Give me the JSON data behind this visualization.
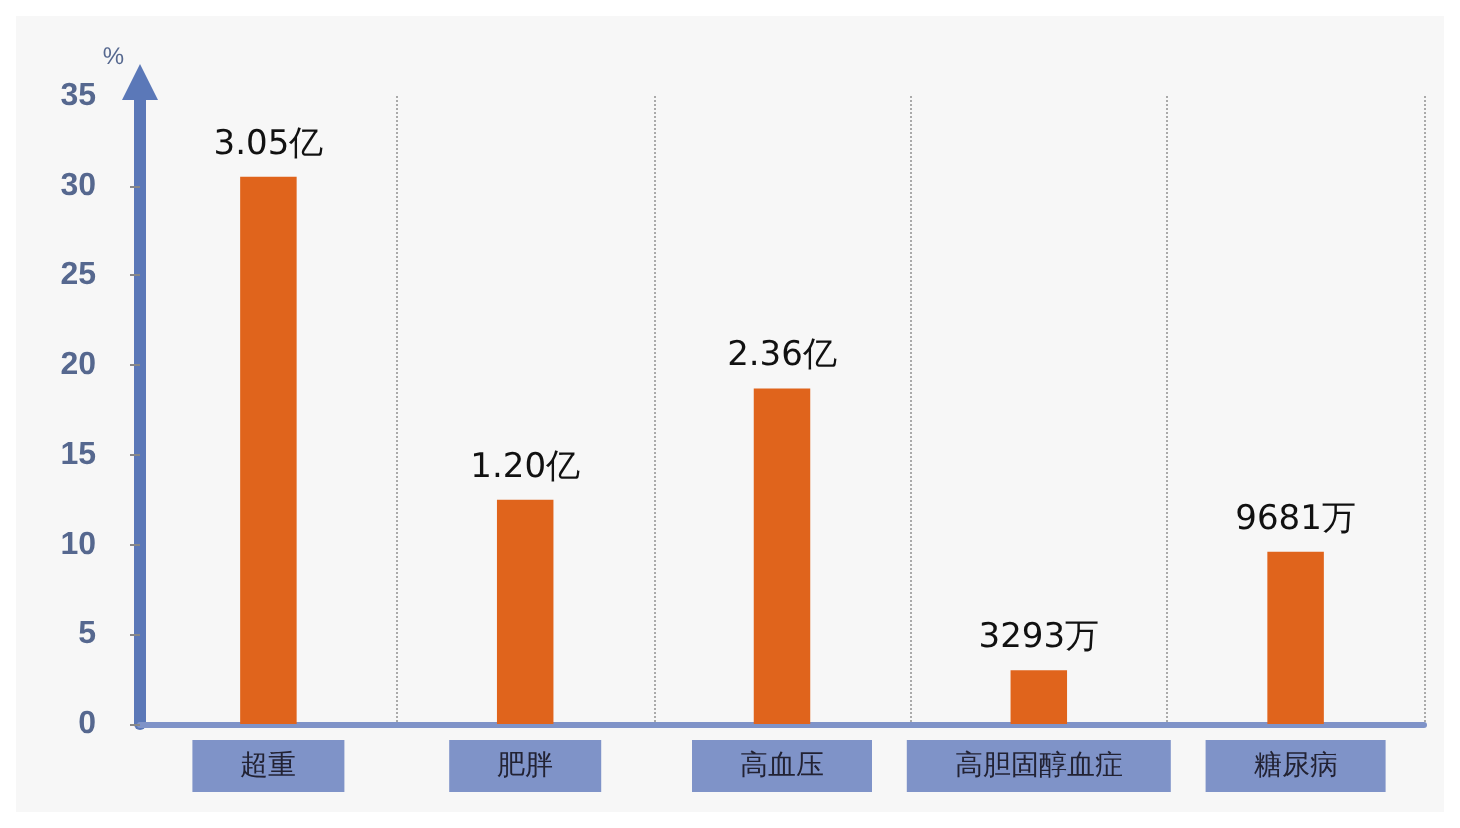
{
  "chart_data": {
    "type": "bar",
    "ylabel": "%",
    "categories": [
      "超重",
      "肥胖",
      "高血压",
      "高胆固醇血症",
      "糖尿病"
    ],
    "values": [
      30.5,
      12.5,
      18.7,
      3.0,
      9.6
    ],
    "annotations": [
      {
        "text": "3.05亿",
        "x": "超重",
        "y": 30.5
      },
      {
        "text": "1.20亿",
        "x": "肥胖",
        "y": 12.5
      },
      {
        "text": "2.36亿",
        "x": "高血压",
        "y": 18.7
      },
      {
        "text": "3293万",
        "x": "高胆固醇血症",
        "y": 3.0
      },
      {
        "text": "9681万",
        "x": "糖尿病",
        "y": 9.6
      }
    ],
    "color": "#e0641c",
    "ylim": [
      0,
      35
    ],
    "yticks": [
      0,
      5,
      10,
      15,
      20,
      25,
      30,
      35
    ],
    "grid": "x"
  }
}
